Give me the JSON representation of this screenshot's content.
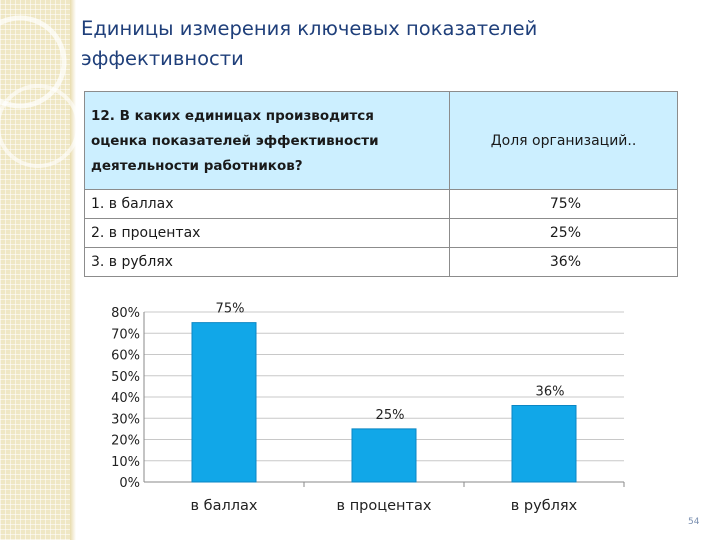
{
  "slide": {
    "title_line1": "Единицы измерения ключевых показателей",
    "title_line2": "эффективности",
    "page_number": "54"
  },
  "table": {
    "question_line1": "12. В каких единицах производится",
    "question_line2": "оценка показателей эффективности",
    "question_line3": "деятельности работников?",
    "share_header": "Доля организаций..",
    "rows": [
      {
        "label": "1. в баллах",
        "value": "75%"
      },
      {
        "label": "2. в процентах",
        "value": "25%"
      },
      {
        "label": "3. в рублях",
        "value": "36%"
      }
    ]
  },
  "colors": {
    "bar": "#11a7e8",
    "bar_edge": "#0a86c4",
    "title": "#1f3f7a",
    "header_fill": "#ccefff"
  },
  "chart_data": {
    "type": "bar",
    "categories": [
      "в баллах",
      "в процентах",
      "в рублях"
    ],
    "values": [
      75,
      25,
      36
    ],
    "data_labels": [
      "75%",
      "25%",
      "36%"
    ],
    "yticks": [
      "0%",
      "10%",
      "20%",
      "30%",
      "40%",
      "50%",
      "60%",
      "70%",
      "80%"
    ],
    "ylim": [
      0,
      80
    ],
    "grid": true,
    "legend": "none",
    "title": "",
    "xlabel": "",
    "ylabel": ""
  }
}
